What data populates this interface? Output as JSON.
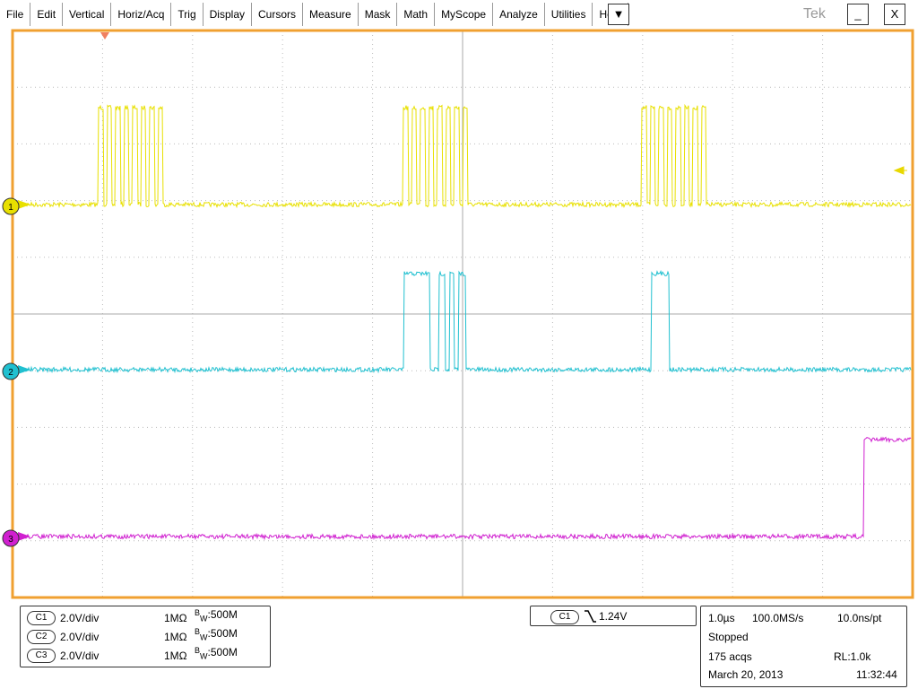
{
  "menu": {
    "items": [
      "File",
      "Edit",
      "Vertical",
      "Horiz/Acq",
      "Trig",
      "Display",
      "Cursors",
      "Measure",
      "Mask",
      "Math",
      "MyScope",
      "Analyze",
      "Utilities",
      "Help"
    ],
    "dropdown": "▼"
  },
  "brand": "Tek",
  "window_controls": {
    "minimize": "_",
    "close": "X"
  },
  "channels": [
    {
      "marker": "1",
      "badge": "C1",
      "scale": "2.0V/div",
      "impedance": "1MΩ",
      "bw_prefix": "B",
      "bw_sub": "W",
      "bw_value": ":500M"
    },
    {
      "marker": "2",
      "badge": "C2",
      "scale": "2.0V/div",
      "impedance": "1MΩ",
      "bw_prefix": "B",
      "bw_sub": "W",
      "bw_value": ":500M"
    },
    {
      "marker": "3",
      "badge": "C3",
      "scale": "2.0V/div",
      "impedance": "1MΩ",
      "bw_prefix": "B",
      "bw_sub": "W",
      "bw_value": ":500M"
    }
  ],
  "trigger": {
    "source": "C1",
    "level": "1.24V"
  },
  "acquisition": {
    "time_scale": "1.0µs",
    "sample_rate": "100.0MS/s",
    "resolution": "10.0ns/pt",
    "state": "Stopped",
    "acqs": "175 acqs",
    "record_length": "RL:1.0k",
    "date": "March 20, 2013",
    "time": "11:32:44"
  }
}
